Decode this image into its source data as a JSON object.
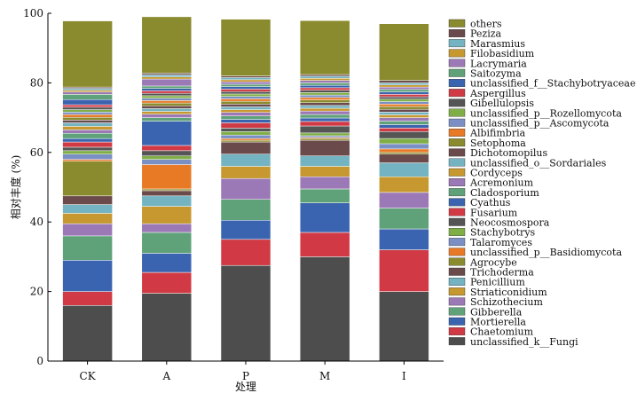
{
  "chart_data": {
    "type": "bar",
    "stacked": true,
    "xlabel": "处理",
    "ylabel": "相对丰度 (%)",
    "ylim": [
      0,
      100
    ],
    "yticks": [
      0,
      20,
      40,
      60,
      80,
      100
    ],
    "grid": false,
    "legend_position": "right",
    "categories": [
      "CK",
      "A",
      "P",
      "M",
      "I"
    ],
    "series": [
      {
        "name": "unclassified_k__Fungi",
        "color": "#4d4d4d",
        "values": [
          16,
          19.5,
          27.5,
          30,
          20
        ]
      },
      {
        "name": "Chaetomium",
        "color": "#d13a44",
        "values": [
          4,
          6,
          7.5,
          7,
          12
        ]
      },
      {
        "name": "Mortierella",
        "color": "#3b64b0",
        "values": [
          9,
          5.5,
          5.5,
          8.5,
          6
        ]
      },
      {
        "name": "Gibberella",
        "color": "#5fa279",
        "values": [
          7,
          6,
          6,
          4,
          6
        ]
      },
      {
        "name": "Schizothecium",
        "color": "#9b78b6",
        "values": [
          3.5,
          2.5,
          6,
          3.5,
          4.5
        ]
      },
      {
        "name": "Striaticonidium",
        "color": "#c6982f",
        "values": [
          3,
          5,
          3.5,
          3,
          4.5
        ]
      },
      {
        "name": "Penicillium",
        "color": "#74b4c2",
        "values": [
          2.5,
          3,
          3.5,
          3,
          4
        ]
      },
      {
        "name": "Trichoderma",
        "color": "#6a4a4a",
        "values": [
          2.5,
          1.5,
          3.5,
          4.5,
          2.5
        ]
      },
      {
        "name": "Agrocybe",
        "color": "#8a8a2e",
        "values": [
          10,
          0.5,
          0.5,
          0.5,
          0.5
        ]
      },
      {
        "name": "unclassified_p__Basidiomycota",
        "color": "#e87a26",
        "values": [
          0.5,
          7,
          0.5,
          0.3,
          1
        ]
      },
      {
        "name": "Talaromyces",
        "color": "#7a8fc4",
        "values": [
          1.5,
          1.5,
          1,
          0.5,
          1.5
        ]
      },
      {
        "name": "Stachybotrys",
        "color": "#7fae46",
        "values": [
          1,
          1,
          1,
          0.8,
          1.5
        ]
      },
      {
        "name": "Neocosmospora",
        "color": "#555555",
        "values": [
          1,
          1.5,
          1,
          2,
          2
        ]
      },
      {
        "name": "Fusarium",
        "color": "#d13a44",
        "values": [
          1.5,
          1.5,
          1.5,
          1.3,
          1
        ]
      },
      {
        "name": "Cyathus",
        "color": "#3b64b0",
        "values": [
          1,
          7,
          1,
          1,
          1
        ]
      },
      {
        "name": "Cladosporium",
        "color": "#5fa279",
        "values": [
          1.5,
          1,
          1,
          1,
          1
        ]
      },
      {
        "name": "Acremonium",
        "color": "#9b78b6",
        "values": [
          1,
          1,
          1,
          1,
          1
        ]
      },
      {
        "name": "Cordyceps",
        "color": "#c6982f",
        "values": [
          1,
          0.8,
          0.8,
          0.8,
          0.8
        ]
      },
      {
        "name": "unclassified_o__Sordariales",
        "color": "#74b4c2",
        "values": [
          1,
          0.8,
          0.8,
          0.8,
          0.8
        ]
      },
      {
        "name": "Dichotomopilus",
        "color": "#6a4a4a",
        "values": [
          0.8,
          0.8,
          0.8,
          0.8,
          0.8
        ]
      },
      {
        "name": "Setophoma",
        "color": "#8a8a2e",
        "values": [
          0.8,
          0.8,
          0.8,
          0.8,
          0.8
        ]
      },
      {
        "name": "Albifimbria",
        "color": "#e87a26",
        "values": [
          0.8,
          0.7,
          0.7,
          0.7,
          0.7
        ]
      },
      {
        "name": "unclassified_p__Ascomycota",
        "color": "#7a8fc4",
        "values": [
          0.7,
          0.7,
          0.7,
          0.7,
          0.7
        ]
      },
      {
        "name": "unclassified_p__Rozellomycota",
        "color": "#7fae46",
        "values": [
          0.7,
          0.7,
          0.7,
          0.7,
          0.7
        ]
      },
      {
        "name": "Gibellulopsis",
        "color": "#555555",
        "values": [
          0.7,
          0.7,
          0.7,
          0.7,
          0.7
        ]
      },
      {
        "name": "Aspergillus",
        "color": "#d13a44",
        "values": [
          0.7,
          0.7,
          0.7,
          0.7,
          0.7
        ]
      },
      {
        "name": "unclassified_f__Stachybotryaceae",
        "color": "#3b64b0",
        "values": [
          1.5,
          0.7,
          0.7,
          0.7,
          0.7
        ]
      },
      {
        "name": "Saitozyma",
        "color": "#5fa279",
        "values": [
          1.5,
          0.7,
          0.7,
          0.7,
          0.7
        ]
      },
      {
        "name": "Lacrymaria",
        "color": "#9b78b6",
        "values": [
          0.7,
          2,
          0.7,
          0.7,
          0.7
        ]
      },
      {
        "name": "Filobasidium",
        "color": "#c6982f",
        "values": [
          0.5,
          0.6,
          0.6,
          0.6,
          0.6
        ]
      },
      {
        "name": "Marasmius",
        "color": "#74b4c2",
        "values": [
          0.5,
          0.6,
          0.6,
          0.6,
          0.6
        ]
      },
      {
        "name": "Peziza",
        "color": "#6a4a4a",
        "values": [
          0.4,
          0.5,
          0.5,
          0.5,
          0.7
        ]
      },
      {
        "name": "others",
        "color": "#8a8a2e",
        "values": [
          19,
          16.2,
          16.3,
          15.5,
          16.3
        ]
      }
    ]
  }
}
